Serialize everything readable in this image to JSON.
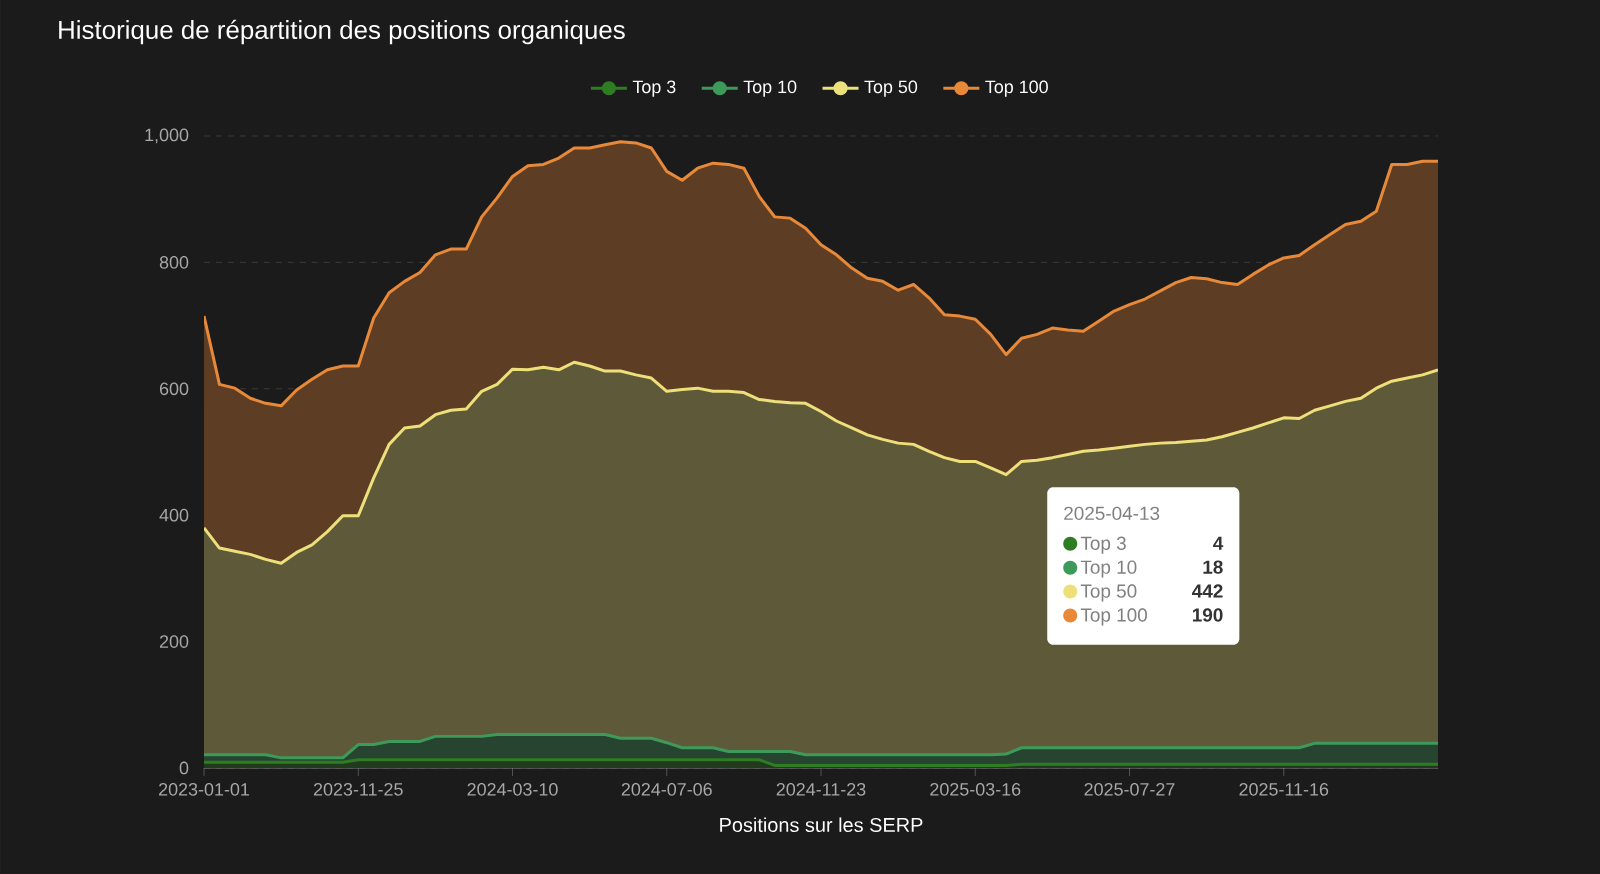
{
  "chart_data": {
    "type": "area",
    "stacked": true,
    "title": "Historique de répartition des positions organiques",
    "xlabel": "Positions sur les SERP",
    "categories": [
      "2023-01-01",
      null,
      null,
      null,
      null,
      null,
      null,
      null,
      null,
      null,
      "2023-11-25",
      null,
      null,
      null,
      null,
      null,
      null,
      null,
      null,
      null,
      "2024-03-10",
      null,
      null,
      null,
      null,
      null,
      null,
      null,
      null,
      null,
      "2024-07-06",
      null,
      null,
      null,
      null,
      null,
      null,
      null,
      null,
      null,
      "2024-11-23",
      null,
      null,
      null,
      null,
      null,
      null,
      null,
      null,
      null,
      "2025-03-16",
      null,
      null,
      null,
      null,
      null,
      null,
      null,
      null,
      null,
      "2025-07-27",
      null,
      null,
      null,
      null,
      null,
      null,
      null,
      null,
      null,
      "2025-11-16",
      null,
      null,
      null,
      null,
      null,
      null,
      null,
      null,
      null,
      null
    ],
    "series": [
      {
        "name": "Top 3",
        "color": "#2f7d22",
        "values": [
          9,
          9,
          9,
          9,
          9,
          9,
          9,
          9,
          9,
          9,
          13,
          13,
          13,
          13,
          13,
          13,
          13,
          13,
          13,
          13,
          13,
          13,
          13,
          13,
          13,
          13,
          13,
          13,
          13,
          13,
          13,
          13,
          13,
          13,
          13,
          13,
          13,
          4,
          4,
          4,
          4,
          4,
          4,
          4,
          4,
          4,
          4,
          4,
          4,
          4,
          4,
          4,
          4,
          6,
          6,
          6,
          6,
          6,
          6,
          6,
          6,
          6,
          6,
          6,
          6,
          6,
          6,
          6,
          6,
          6,
          6,
          6,
          6,
          6,
          6,
          6,
          6,
          6,
          6,
          6,
          6
        ]
      },
      {
        "name": "Top 10",
        "color": "#3e9a5a",
        "values": [
          12,
          12,
          12,
          12,
          12,
          7,
          7,
          7,
          7,
          7,
          24,
          24,
          29,
          29,
          29,
          37,
          37,
          37,
          37,
          40,
          40,
          40,
          40,
          40,
          40,
          40,
          40,
          34,
          34,
          34,
          27,
          19,
          19,
          19,
          13,
          13,
          13,
          22,
          22,
          17,
          17,
          17,
          17,
          17,
          17,
          17,
          17,
          17,
          17,
          17,
          17,
          17,
          18,
          26,
          26,
          26,
          26,
          26,
          26,
          26,
          26,
          26,
          26,
          26,
          26,
          26,
          26,
          26,
          26,
          26,
          26,
          26,
          33,
          33,
          33,
          33,
          33,
          33,
          33,
          33,
          33
        ]
      },
      {
        "name": "Top 50",
        "color": "#ede07a",
        "values": [
          359,
          327,
          322,
          317,
          309,
          308,
          325,
          337,
          358,
          383,
          362,
          422,
          470,
          496,
          499,
          509,
          516,
          518,
          546,
          554,
          578,
          577,
          581,
          577,
          589,
          583,
          575,
          581,
          575,
          570,
          556,
          567,
          569,
          564,
          570,
          568,
          557,
          554,
          552,
          556,
          543,
          528,
          517,
          506,
          499,
          493,
          491,
          480,
          470,
          464,
          464,
          454,
          442,
          453,
          455,
          459,
          464,
          469,
          471,
          474,
          477,
          480,
          482,
          483,
          485,
          487,
          492,
          499,
          506,
          514,
          522,
          521,
          527,
          534,
          541,
          546,
          562,
          573,
          578,
          583,
          591
        ]
      },
      {
        "name": "Top 100",
        "color": "#e8893a",
        "values": [
          335,
          259,
          258,
          247,
          247,
          249,
          257,
          262,
          256,
          237,
          237,
          253,
          240,
          232,
          243,
          253,
          255,
          253,
          276,
          295,
          305,
          323,
          321,
          335,
          339,
          345,
          358,
          363,
          367,
          364,
          348,
          331,
          348,
          361,
          359,
          355,
          321,
          292,
          292,
          277,
          264,
          263,
          253,
          248,
          250,
          242,
          253,
          243,
          226,
          230,
          225,
          211,
          190,
          195,
          199,
          205,
          197,
          190,
          204,
          217,
          224,
          230,
          241,
          253,
          259,
          255,
          244,
          234,
          243,
          250,
          253,
          258,
          262,
          271,
          280,
          280,
          280,
          343,
          338,
          338,
          330
        ]
      }
    ],
    "ylim": [
      0,
      1000
    ],
    "yticks": [
      0,
      200,
      400,
      600,
      800,
      {
        "value": 1000,
        "label": "1,000"
      }
    ],
    "grid": "y",
    "legend": "top",
    "annotations": [
      "2025-04-13",
      "4",
      "18",
      "442",
      "190"
    ]
  }
}
